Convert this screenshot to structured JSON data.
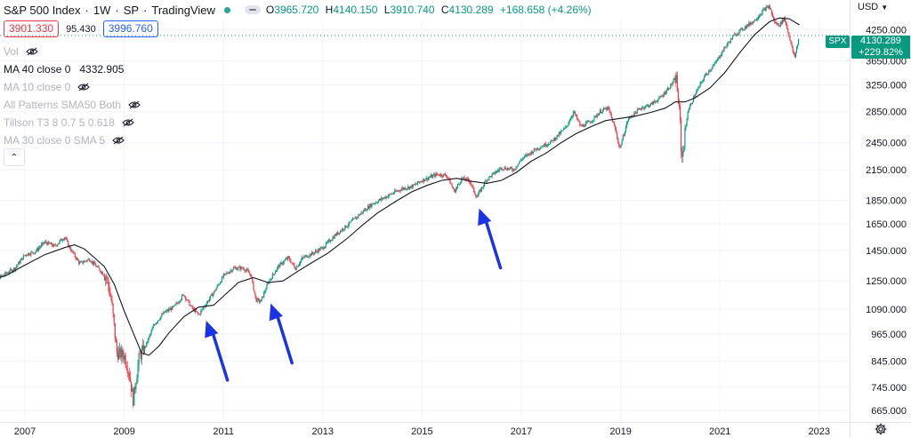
{
  "header": {
    "title": "S&P 500 Index",
    "interval": "1W",
    "exchange": "SP",
    "source": "TradingView",
    "ohlc": {
      "o_label": "O",
      "o": "3965.720",
      "h_label": "H",
      "h": "4140.150",
      "l_label": "L",
      "l": "3910.740",
      "c_label": "C",
      "c": "4130.289",
      "change": "+168.658 (+4.26%)"
    },
    "status_color": "#26a69a"
  },
  "trade": {
    "sell": "3901.330",
    "spread": "95.430",
    "buy": "3996.760"
  },
  "legend": [
    {
      "label": "Vol",
      "value": "",
      "active": false
    },
    {
      "label": "MA 40 close 0",
      "value": "4332.905",
      "active": true
    },
    {
      "label": "MA 10 close 0",
      "value": "",
      "active": false
    },
    {
      "label": "All Patterns SMA50 Both",
      "value": "",
      "active": false
    },
    {
      "label": "Tillson T3 8 0.7 5 0.618",
      "value": "",
      "active": false
    },
    {
      "label": "MA 30 close 0 SMA 5",
      "value": "",
      "active": false
    }
  ],
  "collapse_icon": "chevron-up-icon",
  "axis": {
    "currency": "USD",
    "scale": "log",
    "y_ticks": [
      "4250.000",
      "3650.000",
      "3250.000",
      "2850.000",
      "2450.000",
      "2150.000",
      "1850.000",
      "1650.000",
      "1450.000",
      "1250.000",
      "1090.000",
      "965.000",
      "845.000",
      "745.000",
      "665.000"
    ],
    "x_ticks": [
      "2007",
      "2009",
      "2011",
      "2013",
      "2015",
      "2017",
      "2019",
      "2021",
      "2023"
    ]
  },
  "price_tags": {
    "symbol": "SPX",
    "last": "4130.289",
    "pct": "+229.82%"
  },
  "colors": {
    "up": "#089981",
    "down": "#f23645",
    "ma": "#131722",
    "arrow": "#1a33e6",
    "grid": "#f0f3fa",
    "lastline": "#089981"
  },
  "chart_data": {
    "type": "candlestick",
    "title": "S&P 500 Index",
    "scale": "log",
    "ylim": [
      640,
      4750
    ],
    "xlim": [
      2006.15,
      2023.55
    ],
    "grid": true,
    "series": [
      {
        "name": "S&P 500 Index",
        "kind": "close",
        "points": [
          [
            2006.2,
            1240
          ],
          [
            2006.5,
            1275
          ],
          [
            2006.8,
            1330
          ],
          [
            2007.0,
            1420
          ],
          [
            2007.2,
            1440
          ],
          [
            2007.4,
            1510
          ],
          [
            2007.6,
            1480
          ],
          [
            2007.8,
            1550
          ],
          [
            2007.9,
            1470
          ],
          [
            2008.1,
            1360
          ],
          [
            2008.3,
            1390
          ],
          [
            2008.5,
            1320
          ],
          [
            2008.65,
            1270
          ],
          [
            2008.75,
            1120
          ],
          [
            2008.85,
            880
          ],
          [
            2009.0,
            870
          ],
          [
            2009.1,
            800
          ],
          [
            2009.18,
            700
          ],
          [
            2009.3,
            860
          ],
          [
            2009.45,
            920
          ],
          [
            2009.6,
            1010
          ],
          [
            2009.8,
            1070
          ],
          [
            2010.0,
            1100
          ],
          [
            2010.2,
            1170
          ],
          [
            2010.35,
            1100
          ],
          [
            2010.5,
            1060
          ],
          [
            2010.6,
            1100
          ],
          [
            2010.8,
            1180
          ],
          [
            2011.0,
            1280
          ],
          [
            2011.2,
            1330
          ],
          [
            2011.4,
            1330
          ],
          [
            2011.55,
            1290
          ],
          [
            2011.65,
            1140
          ],
          [
            2011.75,
            1130
          ],
          [
            2011.9,
            1240
          ],
          [
            2012.1,
            1340
          ],
          [
            2012.3,
            1400
          ],
          [
            2012.45,
            1330
          ],
          [
            2012.6,
            1400
          ],
          [
            2012.8,
            1430
          ],
          [
            2013.0,
            1470
          ],
          [
            2013.3,
            1580
          ],
          [
            2013.5,
            1640
          ],
          [
            2013.8,
            1750
          ],
          [
            2014.0,
            1820
          ],
          [
            2014.3,
            1890
          ],
          [
            2014.6,
            1960
          ],
          [
            2014.8,
            1980
          ],
          [
            2015.0,
            2040
          ],
          [
            2015.3,
            2100
          ],
          [
            2015.5,
            2090
          ],
          [
            2015.65,
            1930
          ],
          [
            2015.8,
            2060
          ],
          [
            2015.95,
            2040
          ],
          [
            2016.1,
            1880
          ],
          [
            2016.3,
            2050
          ],
          [
            2016.6,
            2170
          ],
          [
            2016.85,
            2150
          ],
          [
            2017.0,
            2260
          ],
          [
            2017.3,
            2380
          ],
          [
            2017.6,
            2460
          ],
          [
            2017.9,
            2640
          ],
          [
            2018.05,
            2850
          ],
          [
            2018.2,
            2650
          ],
          [
            2018.4,
            2720
          ],
          [
            2018.6,
            2860
          ],
          [
            2018.75,
            2900
          ],
          [
            2018.9,
            2600
          ],
          [
            2018.98,
            2380
          ],
          [
            2019.15,
            2750
          ],
          [
            2019.4,
            2900
          ],
          [
            2019.6,
            2950
          ],
          [
            2019.8,
            3050
          ],
          [
            2020.0,
            3230
          ],
          [
            2020.12,
            3370
          ],
          [
            2020.2,
            2700
          ],
          [
            2020.23,
            2240
          ],
          [
            2020.35,
            2850
          ],
          [
            2020.5,
            3100
          ],
          [
            2020.7,
            3400
          ],
          [
            2020.9,
            3600
          ],
          [
            2021.1,
            3900
          ],
          [
            2021.3,
            4150
          ],
          [
            2021.5,
            4300
          ],
          [
            2021.7,
            4450
          ],
          [
            2021.9,
            4700
          ],
          [
            2022.0,
            4760
          ],
          [
            2022.1,
            4400
          ],
          [
            2022.2,
            4350
          ],
          [
            2022.3,
            4500
          ],
          [
            2022.4,
            4100
          ],
          [
            2022.45,
            3900
          ],
          [
            2022.5,
            3700
          ],
          [
            2022.55,
            3900
          ],
          [
            2022.6,
            4130
          ]
        ]
      },
      {
        "name": "MA 40 close 0",
        "kind": "line",
        "points": [
          [
            2006.2,
            1250
          ],
          [
            2006.6,
            1280
          ],
          [
            2007.0,
            1350
          ],
          [
            2007.4,
            1420
          ],
          [
            2007.8,
            1470
          ],
          [
            2008.0,
            1490
          ],
          [
            2008.2,
            1460
          ],
          [
            2008.4,
            1400
          ],
          [
            2008.6,
            1340
          ],
          [
            2008.8,
            1230
          ],
          [
            2009.0,
            1080
          ],
          [
            2009.2,
            960
          ],
          [
            2009.35,
            880
          ],
          [
            2009.5,
            870
          ],
          [
            2009.7,
            910
          ],
          [
            2009.9,
            970
          ],
          [
            2010.2,
            1050
          ],
          [
            2010.5,
            1100
          ],
          [
            2010.8,
            1110
          ],
          [
            2011.0,
            1160
          ],
          [
            2011.3,
            1240
          ],
          [
            2011.6,
            1270
          ],
          [
            2011.9,
            1240
          ],
          [
            2012.2,
            1250
          ],
          [
            2012.5,
            1310
          ],
          [
            2012.8,
            1370
          ],
          [
            2013.1,
            1430
          ],
          [
            2013.5,
            1540
          ],
          [
            2013.8,
            1640
          ],
          [
            2014.1,
            1740
          ],
          [
            2014.5,
            1850
          ],
          [
            2014.8,
            1930
          ],
          [
            2015.1,
            1990
          ],
          [
            2015.4,
            2040
          ],
          [
            2015.7,
            2060
          ],
          [
            2016.0,
            2030
          ],
          [
            2016.3,
            2010
          ],
          [
            2016.6,
            2040
          ],
          [
            2016.9,
            2120
          ],
          [
            2017.2,
            2240
          ],
          [
            2017.5,
            2330
          ],
          [
            2017.8,
            2450
          ],
          [
            2018.1,
            2560
          ],
          [
            2018.4,
            2650
          ],
          [
            2018.7,
            2730
          ],
          [
            2019.0,
            2760
          ],
          [
            2019.3,
            2790
          ],
          [
            2019.6,
            2840
          ],
          [
            2019.9,
            2900
          ],
          [
            2020.1,
            2990
          ],
          [
            2020.3,
            2990
          ],
          [
            2020.5,
            3050
          ],
          [
            2020.8,
            3200
          ],
          [
            2021.1,
            3450
          ],
          [
            2021.4,
            3800
          ],
          [
            2021.7,
            4150
          ],
          [
            2022.0,
            4420
          ],
          [
            2022.2,
            4500
          ],
          [
            2022.4,
            4480
          ],
          [
            2022.6,
            4350
          ]
        ]
      }
    ],
    "annotations": [
      {
        "type": "arrow",
        "tip": [
          2010.65,
          1030
        ]
      },
      {
        "type": "arrow",
        "tip": [
          2011.95,
          1120
        ]
      },
      {
        "type": "arrow",
        "tip": [
          2016.15,
          1780
        ]
      }
    ]
  }
}
